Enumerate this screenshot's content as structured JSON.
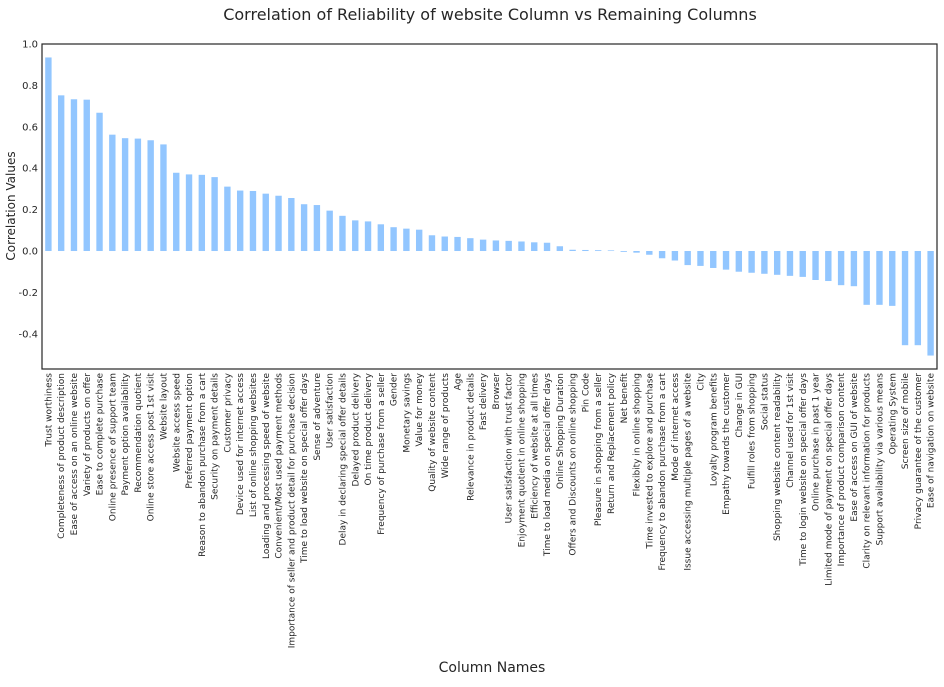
{
  "chart_data": {
    "type": "bar",
    "title": "Correlation of Reliability of website Column vs Remaining Columns",
    "xlabel": "Column Names",
    "ylabel": "Correlation Values",
    "ylim": [
      -0.57,
      1.0
    ],
    "yticks": [
      -0.4,
      -0.2,
      0.0,
      0.2,
      0.4,
      0.6,
      0.8,
      1.0
    ],
    "ytick_labels": [
      "-0.4",
      "-0.2",
      "0.0",
      "0.2",
      "0.4",
      "0.6",
      "0.8",
      "1.0"
    ],
    "grid": false,
    "bar_color": "#92c6ff",
    "categories": [
      "Trust worthiness",
      "Completeness of product description",
      "Ease of access on an online website",
      "Variety of products on offer",
      "Ease to complete purchase",
      "Online presence of support team",
      "Payment option availability",
      "Recommendation quotient",
      "Online store access post 1st visit",
      "Website layout",
      "Website access speed",
      "Preferred payment option",
      "Reason to abandon purchase from a cart",
      "Security on payment details",
      "Customer privacy",
      "Device used for internet access",
      "List of online shopping websites",
      "Loading and processing speed of website",
      "Convenient/Most used payment methods",
      "Importance of seller and product detail for purchase decision",
      "Time to load website on special offer days",
      "Sense of adventure",
      "User satisfaction",
      "Delay in declaring special offer details",
      "Delayed product delivery",
      "On time product delivery",
      "Frequency of purchase from a seller",
      "Gender",
      "Monetary savings",
      "Value for money",
      "Quality of website content",
      "Wide range of products",
      "Age",
      "Relevance in product details",
      "Fast delivery",
      "Browser",
      "User satisfaction with trust factor",
      "Enjoyment quotient in online shopping",
      "Efficiency of website at all times",
      "Time to load media on special offer days",
      "Online Shopping Duration",
      "Offers and Discounts on online shopping",
      "Pin Code",
      "Pleasure in shopping from a seller",
      "Return and Replacement policy",
      "Net benefit",
      "Flexibity in online shopping",
      "Time invested to explore and purchase",
      "Frequency to abandon purchase from a cart",
      "Mode of internet access",
      "Issue accessing multiple pages of a website",
      "City",
      "Loyalty program benefits",
      "Empathy towards the customer",
      "Change in GUI",
      "Fulfill roles from shopping",
      "Social status",
      "Shopping website content readability",
      "Channel used for 1st visit",
      "Time to login website on special offer days",
      "Online purchase in past 1 year",
      "Limited mode of payment on special offer days",
      "Importance of product comparison content",
      "Ease of access on GUI of website",
      "Clarity on relevant information for products",
      "Support availability via various means",
      "Operating System",
      "Screen size of mobile",
      "Privacy guarantee of the customer",
      "Ease of navigation on website"
    ],
    "values": [
      0.935,
      0.752,
      0.733,
      0.731,
      0.668,
      0.562,
      0.545,
      0.543,
      0.535,
      0.515,
      0.378,
      0.37,
      0.368,
      0.357,
      0.311,
      0.292,
      0.29,
      0.277,
      0.267,
      0.256,
      0.226,
      0.222,
      0.195,
      0.17,
      0.148,
      0.143,
      0.129,
      0.115,
      0.108,
      0.103,
      0.076,
      0.07,
      0.068,
      0.062,
      0.055,
      0.051,
      0.049,
      0.046,
      0.042,
      0.04,
      0.023,
      0.006,
      0.005,
      0.004,
      0.003,
      -0.004,
      -0.008,
      -0.018,
      -0.035,
      -0.046,
      -0.068,
      -0.072,
      -0.082,
      -0.09,
      -0.1,
      -0.105,
      -0.11,
      -0.115,
      -0.12,
      -0.125,
      -0.14,
      -0.145,
      -0.165,
      -0.17,
      -0.26,
      -0.26,
      -0.265,
      -0.455,
      -0.455,
      -0.505
    ]
  }
}
